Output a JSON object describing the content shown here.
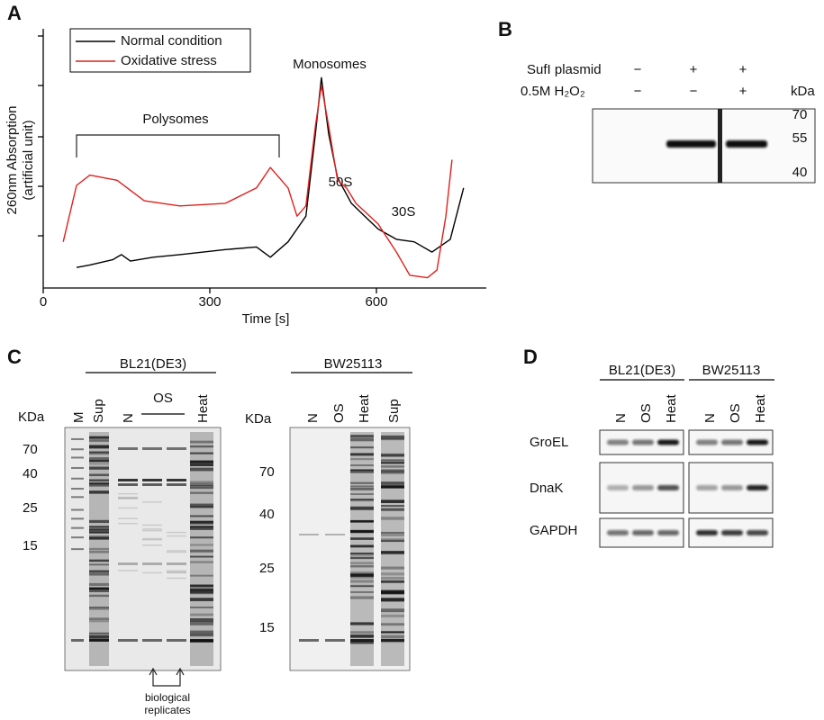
{
  "panel_a": {
    "label": "A"
  },
  "chart_data": {
    "type": "line",
    "xlabel": "Time [s]",
    "ylabel": [
      "260nm Absorption",
      "(artificial unit)"
    ],
    "xlim": [
      0,
      800
    ],
    "ylim": [
      0,
      1
    ],
    "xticks": [
      0,
      300,
      600
    ],
    "annotations": [
      "Monosomes",
      "Polysomes",
      "50S",
      "30S"
    ],
    "series": [
      {
        "name": "Normal condition",
        "color": "#000000",
        "x": [
          60,
          84,
          125,
          141,
          157,
          198,
          246,
          328,
          384,
          409,
          441,
          473,
          490,
          501,
          514,
          530,
          555,
          579,
          603,
          636,
          668,
          700,
          733,
          757
        ],
        "values": [
          0.08,
          0.09,
          0.11,
          0.13,
          0.105,
          0.12,
          0.13,
          0.15,
          0.16,
          0.12,
          0.18,
          0.28,
          0.6,
          0.82,
          0.6,
          0.43,
          0.33,
          0.28,
          0.23,
          0.19,
          0.18,
          0.14,
          0.19,
          0.39
        ]
      },
      {
        "name": "Oxidative stress",
        "color": "#e0201c",
        "x": [
          36,
          60,
          84,
          133,
          182,
          246,
          328,
          384,
          409,
          441,
          457,
          473,
          490,
          501,
          514,
          530,
          546,
          563,
          603,
          636,
          660,
          692,
          709,
          725,
          736
        ],
        "values": [
          0.18,
          0.4,
          0.44,
          0.42,
          0.34,
          0.32,
          0.33,
          0.39,
          0.47,
          0.39,
          0.28,
          0.32,
          0.63,
          0.79,
          0.63,
          0.42,
          0.39,
          0.33,
          0.25,
          0.14,
          0.05,
          0.04,
          0.07,
          0.28,
          0.5
        ]
      }
    ]
  },
  "panel_b": {
    "label": "B",
    "rows": [
      {
        "name": "SufI plasmid",
        "lanes": [
          "−",
          "+",
          "+"
        ]
      },
      {
        "name": "0.5M H₂O₂",
        "lanes": [
          "−",
          "−",
          "+"
        ]
      }
    ],
    "unit": "kDa",
    "markers": [
      "70",
      "55",
      "40"
    ]
  },
  "panel_c": {
    "label": "C",
    "left": {
      "strain": "BL21(DE3)",
      "lanes": [
        "M",
        "Sup",
        "N",
        "Heat"
      ],
      "group": "OS",
      "unit": "KDa",
      "markers": [
        "70",
        "40",
        "25",
        "15"
      ],
      "note": [
        "biological",
        "replicates"
      ]
    },
    "right": {
      "strain": "BW25113",
      "lanes": [
        "N",
        "OS",
        "Heat",
        "Sup"
      ],
      "unit": "KDa",
      "markers": [
        "70",
        "40",
        "25",
        "15"
      ]
    }
  },
  "panel_d": {
    "label": "D",
    "strains": [
      "BL21(DE3)",
      "BW25113"
    ],
    "lanes": [
      "N",
      "OS",
      "Heat"
    ],
    "rows": [
      "GroEL",
      "DnaK",
      "GAPDH"
    ]
  }
}
